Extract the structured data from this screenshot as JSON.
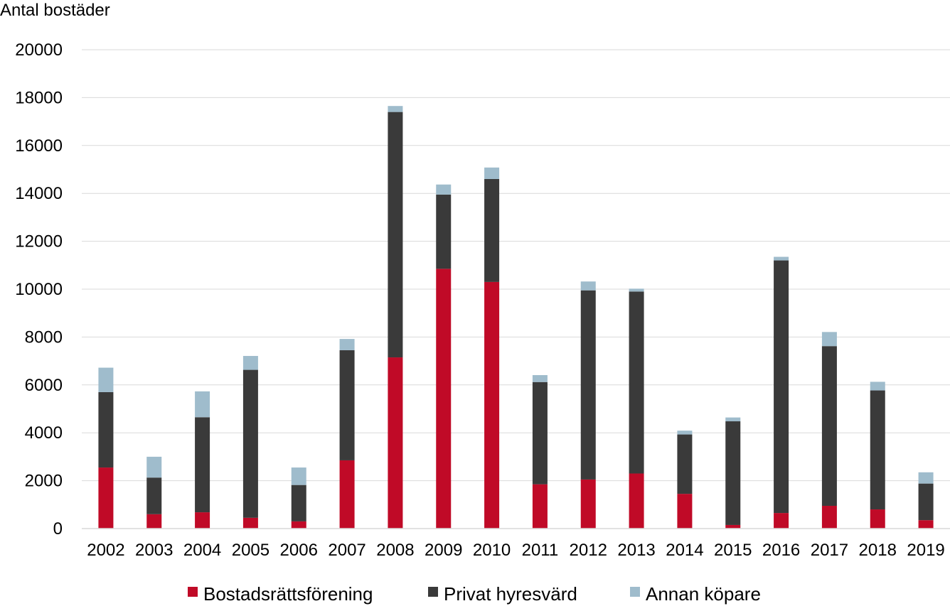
{
  "chart_data": {
    "type": "bar",
    "stacked": true,
    "title": "",
    "xlabel": "",
    "ylabel": "Antal bostäder",
    "ylim": [
      0,
      20000
    ],
    "yticks": [
      0,
      2000,
      4000,
      6000,
      8000,
      10000,
      12000,
      14000,
      16000,
      18000,
      20000
    ],
    "grid": true,
    "legend_position": "bottom",
    "categories": [
      "2002",
      "2003",
      "2004",
      "2005",
      "2006",
      "2007",
      "2008",
      "2009",
      "2010",
      "2011",
      "2012",
      "2013",
      "2014",
      "2015",
      "2016",
      "2017",
      "2018",
      "2019"
    ],
    "series": [
      {
        "name": "Bostadsrättsförening",
        "color": "#c00a27",
        "values": [
          2550,
          600,
          680,
          450,
          300,
          2850,
          7150,
          10850,
          10300,
          1850,
          2050,
          2300,
          1450,
          150,
          650,
          950,
          800,
          350
        ]
      },
      {
        "name": "Privat hyresvärd",
        "color": "#3a3a3a",
        "values": [
          3150,
          1530,
          3970,
          6180,
          1520,
          4600,
          10250,
          3100,
          4300,
          4270,
          7900,
          7600,
          2480,
          4330,
          10550,
          6670,
          4970,
          1530
        ]
      },
      {
        "name": "Annan köpare",
        "color": "#9fbccc",
        "values": [
          1020,
          870,
          1080,
          580,
          730,
          470,
          250,
          420,
          480,
          290,
          370,
          120,
          160,
          160,
          150,
          590,
          360,
          470
        ]
      }
    ]
  }
}
